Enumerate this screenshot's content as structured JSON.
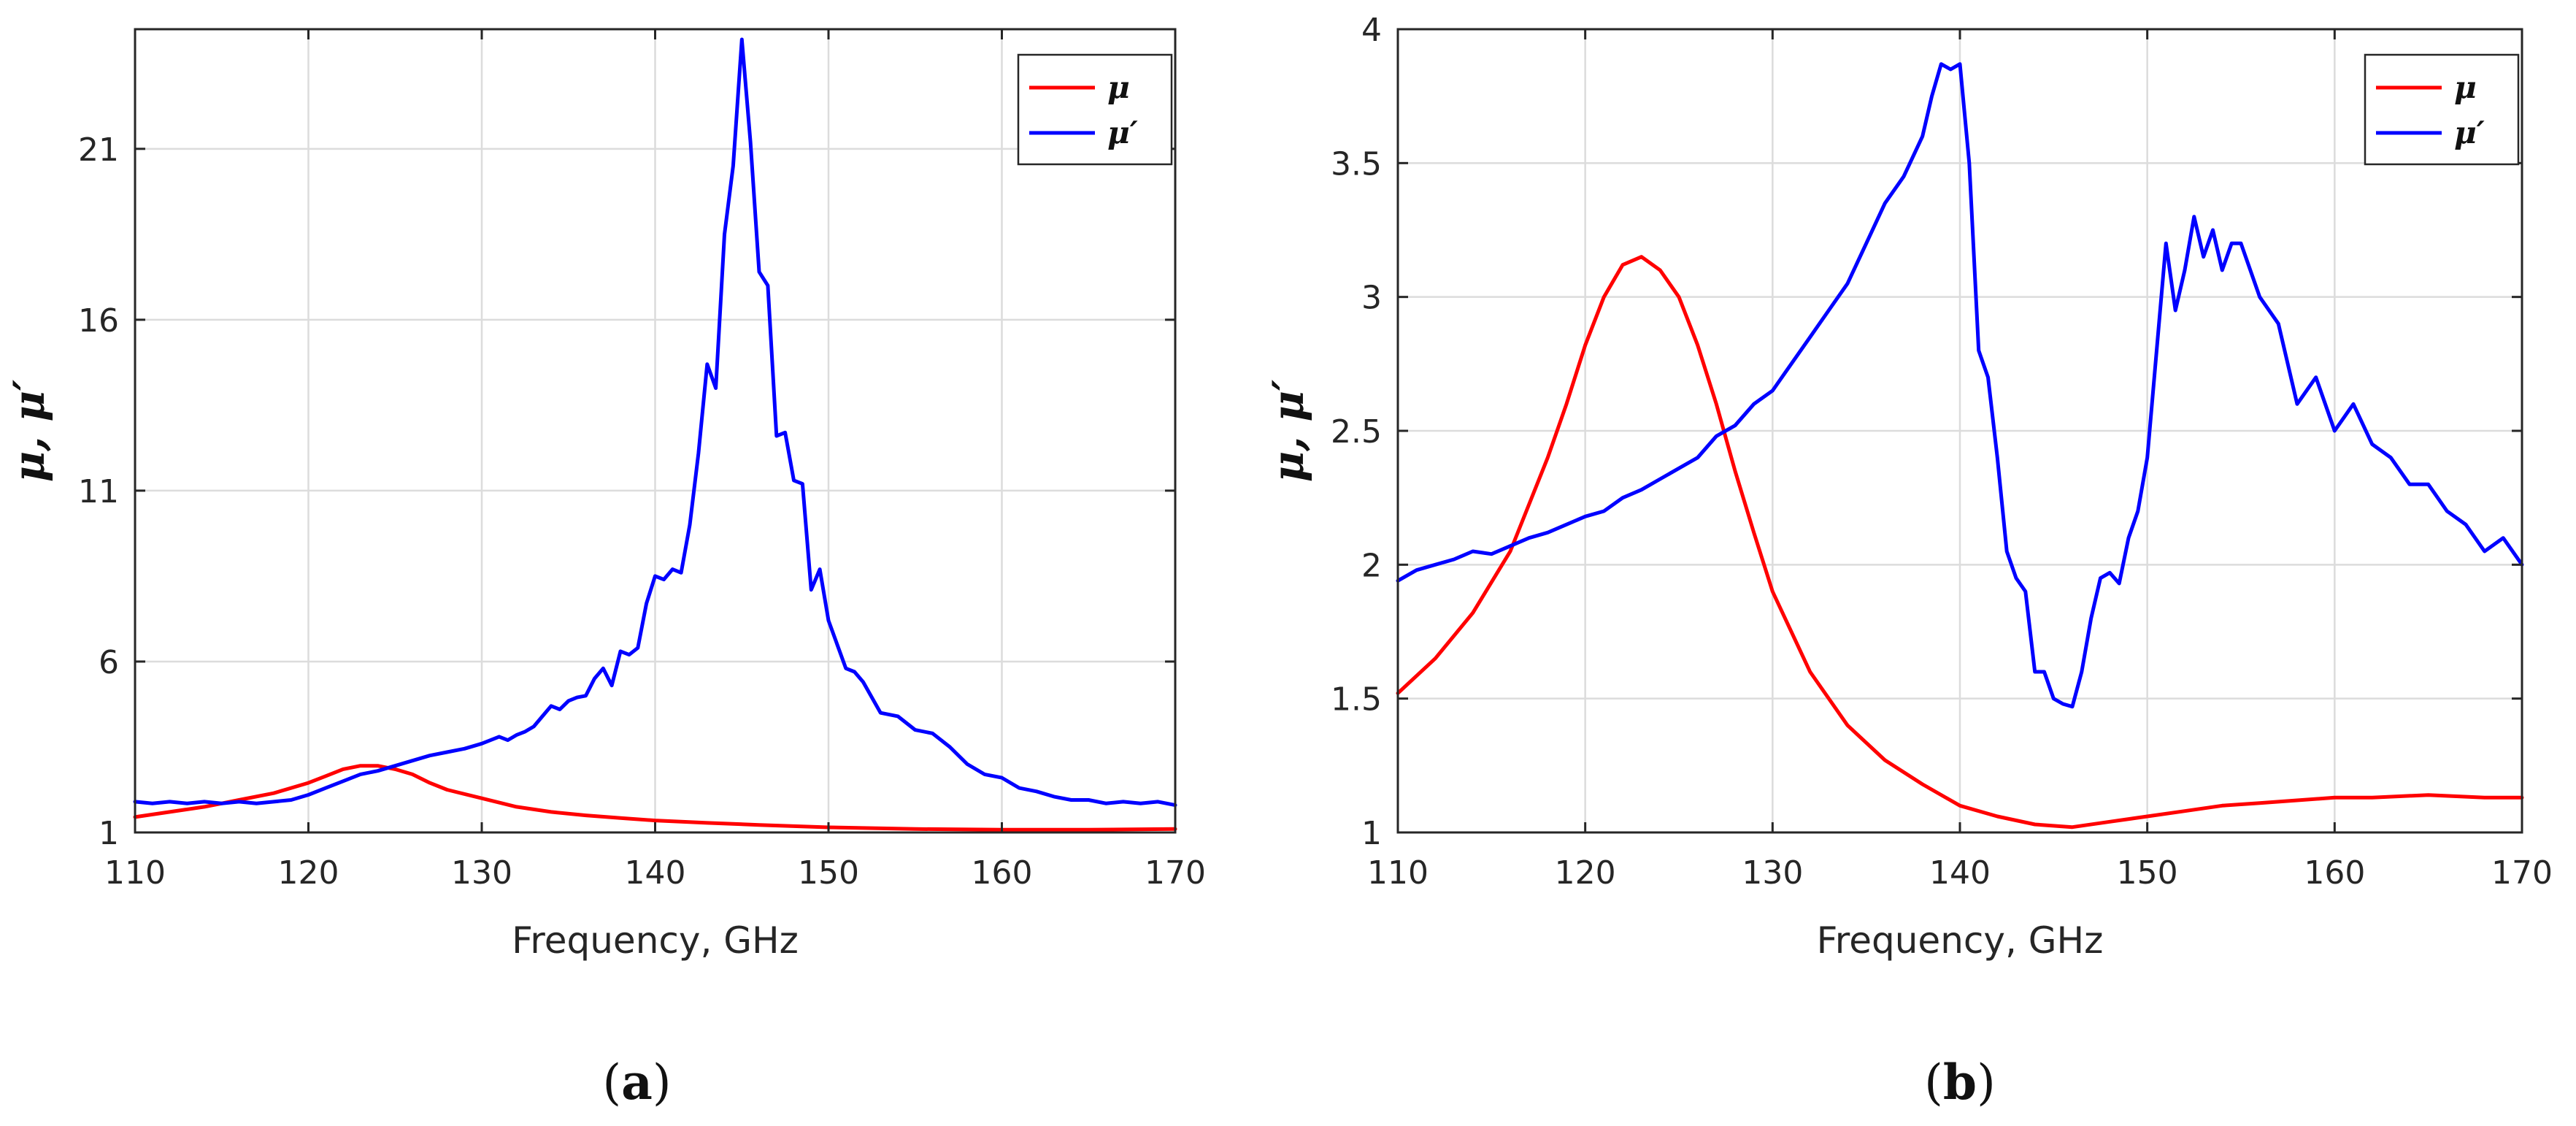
{
  "chart_data": [
    {
      "type": "line",
      "panel_label": "a",
      "xlabel": "Frequency, GHz",
      "ylabel": "μ, μ′",
      "xlim": [
        110,
        170
      ],
      "ylim": [
        1,
        24.5
      ],
      "xticks": [
        110,
        120,
        130,
        140,
        150,
        160,
        170
      ],
      "yticks": [
        1,
        6,
        11,
        16,
        21
      ],
      "grid": true,
      "legend_position": "top-right",
      "series": [
        {
          "name": "μ",
          "color": "#ff0000",
          "x": [
            110,
            112,
            114,
            116,
            118,
            120,
            121,
            122,
            123,
            124,
            125,
            126,
            127,
            128,
            130,
            132,
            134,
            136,
            138,
            140,
            143,
            146,
            150,
            155,
            160,
            165,
            170
          ],
          "y": [
            1.45,
            1.6,
            1.75,
            1.95,
            2.15,
            2.45,
            2.65,
            2.85,
            2.95,
            2.95,
            2.85,
            2.7,
            2.45,
            2.25,
            2.0,
            1.75,
            1.6,
            1.5,
            1.42,
            1.35,
            1.28,
            1.22,
            1.15,
            1.1,
            1.08,
            1.08,
            1.1
          ]
        },
        {
          "name": "μ′",
          "color": "#0000ff",
          "x": [
            110,
            111,
            112,
            113,
            114,
            115,
            116,
            117,
            118,
            119,
            120,
            121,
            122,
            123,
            124,
            125,
            126,
            127,
            128,
            129,
            130,
            131,
            131.5,
            132,
            132.5,
            133,
            133.5,
            134,
            134.5,
            135,
            135.5,
            136,
            136.5,
            137,
            137.5,
            138,
            138.5,
            139,
            139.5,
            140,
            140.5,
            141,
            141.5,
            142,
            142.5,
            143,
            143.5,
            144,
            144.5,
            145,
            145.5,
            146,
            146.5,
            147,
            147.5,
            148,
            148.5,
            149,
            149.5,
            150,
            150.5,
            151,
            151.5,
            152,
            153,
            154,
            155,
            156,
            157,
            158,
            159,
            160,
            161,
            162,
            163,
            164,
            165,
            166,
            167,
            168,
            169,
            170
          ],
          "y": [
            1.9,
            1.85,
            1.9,
            1.85,
            1.9,
            1.85,
            1.9,
            1.85,
            1.9,
            1.95,
            2.1,
            2.3,
            2.5,
            2.7,
            2.8,
            2.95,
            3.1,
            3.25,
            3.35,
            3.45,
            3.6,
            3.8,
            3.7,
            3.85,
            3.95,
            4.1,
            4.4,
            4.7,
            4.6,
            4.85,
            4.95,
            5.0,
            5.5,
            5.8,
            5.3,
            6.3,
            6.2,
            6.4,
            7.7,
            8.5,
            8.4,
            8.7,
            8.6,
            10.0,
            12.1,
            14.7,
            14.0,
            18.5,
            20.5,
            24.2,
            21.2,
            17.4,
            17.0,
            12.6,
            12.7,
            11.3,
            11.2,
            8.1,
            8.7,
            7.2,
            6.5,
            5.8,
            5.7,
            5.4,
            4.5,
            4.4,
            4.0,
            3.9,
            3.5,
            3.0,
            2.7,
            2.6,
            2.3,
            2.2,
            2.05,
            1.95,
            1.95,
            1.85,
            1.9,
            1.85,
            1.9,
            1.8
          ]
        }
      ]
    },
    {
      "type": "line",
      "panel_label": "b",
      "xlabel": "Frequency, GHz",
      "ylabel": "μ, μ′",
      "xlim": [
        110,
        170
      ],
      "ylim": [
        1,
        4
      ],
      "xticks": [
        110,
        120,
        130,
        140,
        150,
        160,
        170
      ],
      "yticks": [
        1,
        1.5,
        2,
        2.5,
        3,
        3.5,
        4
      ],
      "grid": true,
      "legend_position": "top-right",
      "series": [
        {
          "name": "μ",
          "color": "#ff0000",
          "x": [
            110,
            112,
            114,
            116,
            118,
            119,
            120,
            121,
            122,
            123,
            124,
            125,
            126,
            127,
            128,
            129,
            130,
            132,
            134,
            136,
            138,
            140,
            142,
            144,
            146,
            148,
            150,
            152,
            154,
            156,
            158,
            160,
            162,
            165,
            168,
            170
          ],
          "y": [
            1.52,
            1.65,
            1.82,
            2.05,
            2.4,
            2.6,
            2.82,
            3.0,
            3.12,
            3.15,
            3.1,
            3.0,
            2.82,
            2.6,
            2.35,
            2.12,
            1.9,
            1.6,
            1.4,
            1.27,
            1.18,
            1.1,
            1.06,
            1.03,
            1.02,
            1.04,
            1.06,
            1.08,
            1.1,
            1.11,
            1.12,
            1.13,
            1.13,
            1.14,
            1.13,
            1.13
          ],
          "ylim_note": ""
        },
        {
          "name": "μ′",
          "color": "#0000ff",
          "x": [
            110,
            111,
            112,
            113,
            114,
            115,
            116,
            117,
            118,
            119,
            120,
            121,
            122,
            123,
            124,
            125,
            126,
            127,
            128,
            129,
            130,
            131,
            132,
            133,
            134,
            135,
            136,
            137,
            138,
            138.5,
            139,
            139.5,
            140,
            140.5,
            141,
            141.5,
            142,
            142.5,
            143,
            143.5,
            144,
            144.5,
            145,
            145.5,
            146,
            146.5,
            147,
            147.5,
            148,
            148.5,
            149,
            149.5,
            150,
            150.5,
            151,
            151.5,
            152,
            152.5,
            153,
            153.5,
            154,
            154.5,
            155,
            156,
            157,
            158,
            159,
            160,
            161,
            162,
            163,
            164,
            165,
            166,
            167,
            168,
            169,
            170
          ],
          "y": [
            1.94,
            1.98,
            2.0,
            2.02,
            2.05,
            2.04,
            2.07,
            2.1,
            2.12,
            2.15,
            2.18,
            2.2,
            2.25,
            2.28,
            2.32,
            2.36,
            2.4,
            2.48,
            2.52,
            2.6,
            2.65,
            2.75,
            2.85,
            2.95,
            3.05,
            3.2,
            3.35,
            3.45,
            3.6,
            3.75,
            3.87,
            3.85,
            3.87,
            3.5,
            2.8,
            2.7,
            2.4,
            2.05,
            1.95,
            1.9,
            1.6,
            1.6,
            1.5,
            1.48,
            1.47,
            1.6,
            1.8,
            1.95,
            1.97,
            1.93,
            2.1,
            2.2,
            2.4,
            2.8,
            3.2,
            2.95,
            3.1,
            3.3,
            3.15,
            3.25,
            3.1,
            3.2,
            3.2,
            3.0,
            2.9,
            2.6,
            2.7,
            2.5,
            2.6,
            2.45,
            2.4,
            2.3,
            2.3,
            2.2,
            2.15,
            2.05,
            2.1,
            2.0
          ],
          "ylim_note": ""
        }
      ]
    }
  ]
}
